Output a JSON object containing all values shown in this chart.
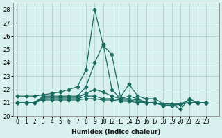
{
  "xlabel": "Humidex (Indice chaleur)",
  "ylabel": "",
  "background_color": "#d8f0ee",
  "grid_color": "#b0d4d0",
  "line_color": "#1a6b60",
  "xlim": [
    -0.5,
    23.5
  ],
  "ylim": [
    20,
    28.5
  ],
  "yticks": [
    20,
    21,
    22,
    23,
    24,
    25,
    26,
    27,
    28
  ],
  "xtick_labels": [
    "0",
    "1",
    "2",
    "3",
    "4",
    "5",
    "6",
    "7",
    "8",
    "9",
    "10",
    "12",
    "13",
    "14",
    "15",
    "16",
    "17",
    "18",
    "19",
    "20",
    "21",
    "22",
    "23"
  ],
  "series": [
    [
      21.5,
      21.5,
      21.5,
      21.6,
      21.7,
      21.8,
      22.0,
      22.2,
      23.5,
      28.0,
      25.3,
      24.6,
      21.4,
      22.4,
      21.5,
      21.3,
      21.3,
      20.9,
      20.9,
      20.5,
      21.3,
      21.0,
      21.0
    ],
    [
      21.0,
      21.0,
      21.0,
      21.5,
      21.5,
      21.5,
      21.5,
      21.5,
      22.2,
      24.0,
      25.4,
      22.0,
      21.3,
      21.5,
      21.3,
      21.0,
      21.0,
      20.9,
      20.9,
      20.9,
      21.2,
      21.0,
      21.0
    ],
    [
      21.0,
      21.0,
      21.0,
      21.4,
      21.4,
      21.4,
      21.4,
      21.4,
      21.7,
      22.0,
      21.8,
      21.5,
      21.3,
      21.3,
      21.2,
      21.0,
      21.0,
      20.8,
      20.8,
      20.9,
      21.0,
      21.0,
      21.0
    ],
    [
      21.0,
      21.0,
      21.0,
      21.3,
      21.3,
      21.3,
      21.3,
      21.3,
      21.5,
      21.5,
      21.3,
      21.3,
      21.2,
      21.2,
      21.1,
      21.0,
      21.0,
      20.8,
      20.8,
      20.9,
      21.0,
      21.0,
      21.0
    ],
    [
      21.0,
      21.0,
      21.0,
      21.2,
      21.2,
      21.2,
      21.2,
      21.2,
      21.3,
      21.3,
      21.2,
      21.2,
      21.1,
      21.1,
      21.0,
      21.0,
      21.0,
      20.8,
      20.8,
      20.9,
      21.0,
      21.0,
      21.0
    ]
  ]
}
